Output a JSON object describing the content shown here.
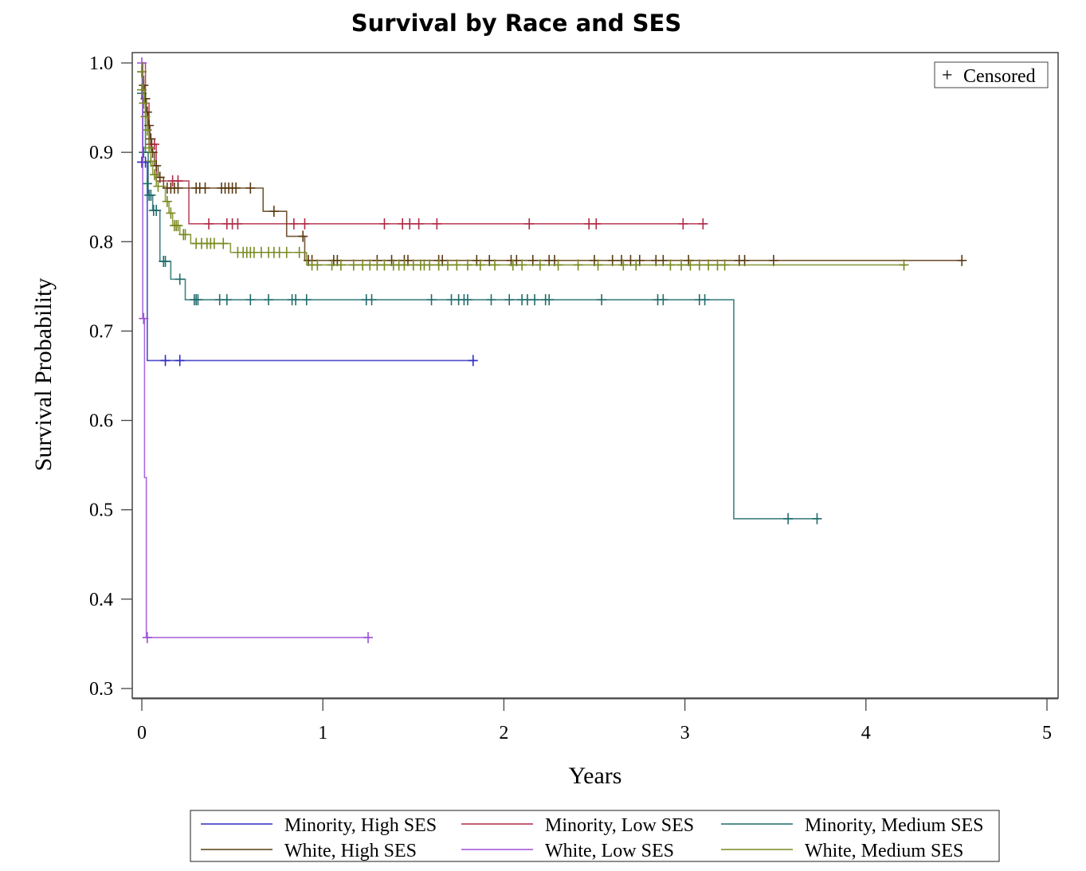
{
  "chart_data": {
    "type": "line",
    "subtype": "kaplan-meier step",
    "title": "Survival by Race and SES",
    "xlabel": "Years",
    "ylabel": "Survival Probability",
    "xlim": [
      -0.05,
      5.03
    ],
    "ylim": [
      0.29,
      1.012
    ],
    "xticks": [
      "0",
      "1",
      "2",
      "3",
      "4",
      "5"
    ],
    "yticks": [
      "0.3",
      "0.4",
      "0.5",
      "0.6",
      "0.7",
      "0.8",
      "0.9",
      "1.0"
    ],
    "grid": false,
    "censor_legend": {
      "symbol": "+",
      "label": "Censored",
      "placement": "top-right"
    },
    "legend_placement": "bottom",
    "series": [
      {
        "name": "Minority, High SES",
        "color": "#2f2fbf",
        "steps": [
          [
            0,
            1.0
          ],
          [
            0.005,
            0.889
          ],
          [
            0.03,
            0.667
          ]
        ],
        "end": 1.84,
        "censored": [
          [
            0.0,
            0.889
          ],
          [
            0.02,
            0.889
          ],
          [
            0.13,
            0.667
          ],
          [
            0.21,
            0.667
          ],
          [
            1.83,
            0.667
          ]
        ]
      },
      {
        "name": "Minority, Low SES",
        "color": "#b22a45",
        "steps": [
          [
            0,
            1.0
          ],
          [
            0.02,
            0.955
          ],
          [
            0.04,
            0.909
          ],
          [
            0.08,
            0.868
          ],
          [
            0.26,
            0.82
          ]
        ],
        "end": 3.12,
        "censored": [
          [
            0.05,
            0.909
          ],
          [
            0.07,
            0.909
          ],
          [
            0.17,
            0.868
          ],
          [
            0.2,
            0.868
          ],
          [
            0.37,
            0.82
          ],
          [
            0.47,
            0.82
          ],
          [
            0.5,
            0.82
          ],
          [
            0.53,
            0.82
          ],
          [
            0.84,
            0.82
          ],
          [
            0.9,
            0.82
          ],
          [
            1.34,
            0.82
          ],
          [
            1.44,
            0.82
          ],
          [
            1.48,
            0.82
          ],
          [
            1.53,
            0.82
          ],
          [
            1.63,
            0.82
          ],
          [
            2.14,
            0.82
          ],
          [
            2.47,
            0.82
          ],
          [
            2.51,
            0.82
          ],
          [
            2.99,
            0.82
          ],
          [
            3.1,
            0.82
          ]
        ]
      },
      {
        "name": "Minority, Medium SES",
        "color": "#1f6b6b",
        "steps": [
          [
            0,
            1.0
          ],
          [
            0.002,
            0.966
          ],
          [
            0.02,
            0.9
          ],
          [
            0.035,
            0.852
          ],
          [
            0.06,
            0.835
          ],
          [
            0.1,
            0.778
          ],
          [
            0.16,
            0.758
          ],
          [
            0.24,
            0.735
          ],
          [
            3.27,
            0.49
          ]
        ],
        "end": 3.74,
        "censored": [
          [
            0.0,
            0.966
          ],
          [
            0.01,
            0.9
          ],
          [
            0.03,
            0.865
          ],
          [
            0.04,
            0.852
          ],
          [
            0.05,
            0.852
          ],
          [
            0.065,
            0.835
          ],
          [
            0.08,
            0.835
          ],
          [
            0.12,
            0.778
          ],
          [
            0.13,
            0.778
          ],
          [
            0.21,
            0.758
          ],
          [
            0.29,
            0.735
          ],
          [
            0.3,
            0.735
          ],
          [
            0.31,
            0.735
          ],
          [
            0.43,
            0.735
          ],
          [
            0.47,
            0.735
          ],
          [
            0.6,
            0.735
          ],
          [
            0.7,
            0.735
          ],
          [
            0.83,
            0.735
          ],
          [
            0.85,
            0.735
          ],
          [
            0.91,
            0.735
          ],
          [
            1.24,
            0.735
          ],
          [
            1.27,
            0.735
          ],
          [
            1.6,
            0.735
          ],
          [
            1.71,
            0.735
          ],
          [
            1.75,
            0.735
          ],
          [
            1.78,
            0.735
          ],
          [
            1.8,
            0.735
          ],
          [
            1.93,
            0.735
          ],
          [
            2.03,
            0.735
          ],
          [
            2.1,
            0.735
          ],
          [
            2.13,
            0.735
          ],
          [
            2.17,
            0.735
          ],
          [
            2.23,
            0.735
          ],
          [
            2.25,
            0.735
          ],
          [
            2.54,
            0.735
          ],
          [
            2.85,
            0.735
          ],
          [
            2.88,
            0.735
          ],
          [
            3.08,
            0.735
          ],
          [
            3.11,
            0.735
          ],
          [
            3.57,
            0.49
          ],
          [
            3.73,
            0.49
          ]
        ]
      },
      {
        "name": "White, High SES",
        "color": "#5a3a12",
        "steps": [
          [
            0,
            1.0
          ],
          [
            0.005,
            0.985
          ],
          [
            0.01,
            0.975
          ],
          [
            0.015,
            0.96
          ],
          [
            0.025,
            0.945
          ],
          [
            0.035,
            0.93
          ],
          [
            0.045,
            0.915
          ],
          [
            0.055,
            0.9
          ],
          [
            0.07,
            0.885
          ],
          [
            0.09,
            0.872
          ],
          [
            0.12,
            0.86
          ],
          [
            0.67,
            0.834
          ],
          [
            0.8,
            0.806
          ],
          [
            0.9,
            0.779
          ]
        ],
        "end": 4.54,
        "censored": [
          [
            0.0,
            0.99
          ],
          [
            0.01,
            0.975
          ],
          [
            0.02,
            0.96
          ],
          [
            0.03,
            0.945
          ],
          [
            0.04,
            0.93
          ],
          [
            0.05,
            0.915
          ],
          [
            0.06,
            0.9
          ],
          [
            0.08,
            0.885
          ],
          [
            0.1,
            0.872
          ],
          [
            0.14,
            0.86
          ],
          [
            0.16,
            0.86
          ],
          [
            0.18,
            0.86
          ],
          [
            0.2,
            0.86
          ],
          [
            0.3,
            0.86
          ],
          [
            0.32,
            0.86
          ],
          [
            0.35,
            0.86
          ],
          [
            0.44,
            0.86
          ],
          [
            0.46,
            0.86
          ],
          [
            0.48,
            0.86
          ],
          [
            0.5,
            0.86
          ],
          [
            0.52,
            0.86
          ],
          [
            0.6,
            0.86
          ],
          [
            0.73,
            0.834
          ],
          [
            0.89,
            0.806
          ],
          [
            0.92,
            0.779
          ],
          [
            0.94,
            0.779
          ],
          [
            1.06,
            0.779
          ],
          [
            1.08,
            0.779
          ],
          [
            1.3,
            0.779
          ],
          [
            1.38,
            0.779
          ],
          [
            1.45,
            0.779
          ],
          [
            1.47,
            0.779
          ],
          [
            1.64,
            0.779
          ],
          [
            1.66,
            0.779
          ],
          [
            1.85,
            0.779
          ],
          [
            1.92,
            0.779
          ],
          [
            2.04,
            0.779
          ],
          [
            2.07,
            0.779
          ],
          [
            2.16,
            0.779
          ],
          [
            2.25,
            0.779
          ],
          [
            2.28,
            0.779
          ],
          [
            2.5,
            0.779
          ],
          [
            2.6,
            0.779
          ],
          [
            2.65,
            0.779
          ],
          [
            2.7,
            0.779
          ],
          [
            2.75,
            0.779
          ],
          [
            2.84,
            0.779
          ],
          [
            2.88,
            0.779
          ],
          [
            3.02,
            0.779
          ],
          [
            3.3,
            0.779
          ],
          [
            3.33,
            0.779
          ],
          [
            3.49,
            0.779
          ],
          [
            4.53,
            0.779
          ]
        ]
      },
      {
        "name": "White, Low SES",
        "color": "#9b4fd6",
        "steps": [
          [
            0,
            1.0
          ],
          [
            0.005,
            0.714
          ],
          [
            0.015,
            0.536
          ],
          [
            0.025,
            0.357
          ]
        ],
        "end": 1.26,
        "censored": [
          [
            0.0,
            1.0
          ],
          [
            0.01,
            0.714
          ],
          [
            0.03,
            0.357
          ],
          [
            1.25,
            0.357
          ]
        ]
      },
      {
        "name": "White, Medium SES",
        "color": "#7a8a22",
        "steps": [
          [
            0,
            1.0
          ],
          [
            0.003,
            0.985
          ],
          [
            0.008,
            0.97
          ],
          [
            0.014,
            0.955
          ],
          [
            0.02,
            0.94
          ],
          [
            0.03,
            0.925
          ],
          [
            0.04,
            0.905
          ],
          [
            0.05,
            0.89
          ],
          [
            0.06,
            0.875
          ],
          [
            0.08,
            0.862
          ],
          [
            0.13,
            0.845
          ],
          [
            0.15,
            0.832
          ],
          [
            0.17,
            0.818
          ],
          [
            0.21,
            0.808
          ],
          [
            0.27,
            0.798
          ],
          [
            0.49,
            0.788
          ],
          [
            0.91,
            0.774
          ]
        ],
        "end": 4.22,
        "censored": [
          [
            0.0,
            0.99
          ],
          [
            0.0,
            0.97
          ],
          [
            0.01,
            0.955
          ],
          [
            0.02,
            0.94
          ],
          [
            0.03,
            0.925
          ],
          [
            0.04,
            0.905
          ],
          [
            0.05,
            0.89
          ],
          [
            0.07,
            0.875
          ],
          [
            0.09,
            0.862
          ],
          [
            0.14,
            0.845
          ],
          [
            0.16,
            0.832
          ],
          [
            0.18,
            0.818
          ],
          [
            0.19,
            0.818
          ],
          [
            0.2,
            0.818
          ],
          [
            0.23,
            0.808
          ],
          [
            0.24,
            0.808
          ],
          [
            0.3,
            0.798
          ],
          [
            0.33,
            0.798
          ],
          [
            0.36,
            0.798
          ],
          [
            0.38,
            0.798
          ],
          [
            0.4,
            0.798
          ],
          [
            0.45,
            0.798
          ],
          [
            0.53,
            0.788
          ],
          [
            0.56,
            0.788
          ],
          [
            0.58,
            0.788
          ],
          [
            0.6,
            0.788
          ],
          [
            0.62,
            0.788
          ],
          [
            0.66,
            0.788
          ],
          [
            0.7,
            0.788
          ],
          [
            0.73,
            0.788
          ],
          [
            0.76,
            0.788
          ],
          [
            0.8,
            0.788
          ],
          [
            0.87,
            0.788
          ],
          [
            0.94,
            0.774
          ],
          [
            0.97,
            0.774
          ],
          [
            1.05,
            0.774
          ],
          [
            1.1,
            0.774
          ],
          [
            1.17,
            0.774
          ],
          [
            1.22,
            0.774
          ],
          [
            1.26,
            0.774
          ],
          [
            1.3,
            0.774
          ],
          [
            1.34,
            0.774
          ],
          [
            1.39,
            0.774
          ],
          [
            1.42,
            0.774
          ],
          [
            1.45,
            0.774
          ],
          [
            1.5,
            0.774
          ],
          [
            1.54,
            0.774
          ],
          [
            1.56,
            0.774
          ],
          [
            1.59,
            0.774
          ],
          [
            1.64,
            0.774
          ],
          [
            1.69,
            0.774
          ],
          [
            1.74,
            0.774
          ],
          [
            1.8,
            0.774
          ],
          [
            1.87,
            0.774
          ],
          [
            1.95,
            0.774
          ],
          [
            2.05,
            0.774
          ],
          [
            2.1,
            0.774
          ],
          [
            2.2,
            0.774
          ],
          [
            2.3,
            0.774
          ],
          [
            2.41,
            0.774
          ],
          [
            2.52,
            0.774
          ],
          [
            2.66,
            0.774
          ],
          [
            2.73,
            0.774
          ],
          [
            2.92,
            0.774
          ],
          [
            2.98,
            0.774
          ],
          [
            3.03,
            0.774
          ],
          [
            3.08,
            0.774
          ],
          [
            3.13,
            0.774
          ],
          [
            3.18,
            0.774
          ],
          [
            3.22,
            0.774
          ],
          [
            4.21,
            0.774
          ]
        ]
      }
    ]
  }
}
